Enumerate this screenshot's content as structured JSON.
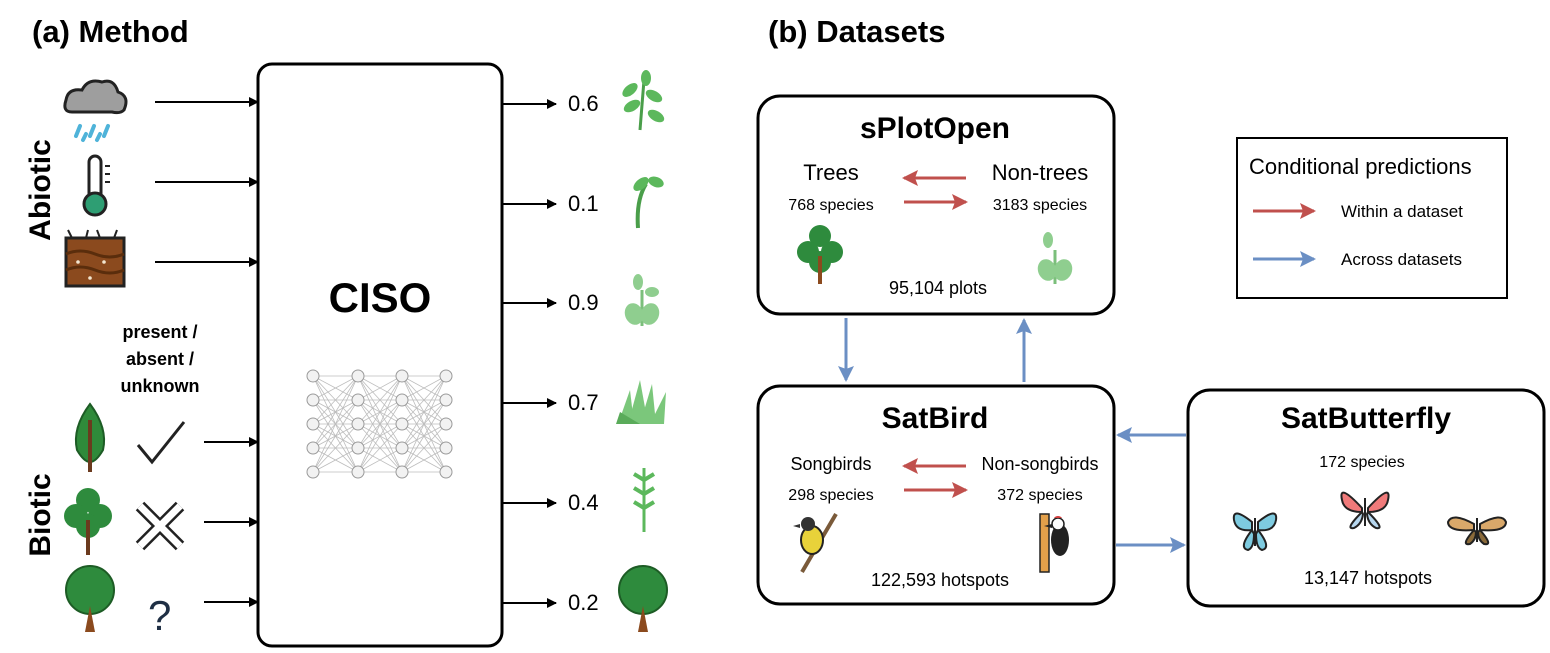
{
  "panel_a": {
    "title": "(a) Method",
    "abiotic_label": "Abiotic",
    "biotic_label": "Biotic",
    "model_label": "CISO",
    "status_label": [
      "present /",
      "absent /",
      "unknown"
    ],
    "input_icons": [
      "rain-cloud-icon",
      "thermometer-icon",
      "soil-icon",
      "leaf-tree-icon",
      "check-icon",
      "bushy-tree-icon",
      "cross-icon",
      "round-tree-icon",
      "question-icon"
    ],
    "outputs": [
      {
        "value": "0.6",
        "icon": "sprig-icon"
      },
      {
        "value": "0.1",
        "icon": "sprout-icon"
      },
      {
        "value": "0.9",
        "icon": "seedling-icon"
      },
      {
        "value": "0.7",
        "icon": "grass-icon"
      },
      {
        "value": "0.4",
        "icon": "fern-icon"
      },
      {
        "value": "0.2",
        "icon": "round-tree-icon"
      }
    ]
  },
  "panel_b": {
    "title": "(b) Datasets",
    "datasets": [
      {
        "name": "sPlotOpen",
        "group_a": "Trees",
        "group_a_count": "768 species",
        "group_b": "Non-trees",
        "group_b_count": "3183 species",
        "total": "95,104 plots"
      },
      {
        "name": "SatBird",
        "group_a": "Songbirds",
        "group_a_count": "298 species",
        "group_b": "Non-songbirds",
        "group_b_count": "372 species",
        "total": "122,593 hotspots"
      },
      {
        "name": "SatButterfly",
        "count": "172 species",
        "total": "13,147 hotspots"
      }
    ],
    "legend": {
      "title": "Conditional predictions",
      "within": "Within a dataset",
      "across": "Across datasets"
    },
    "colors": {
      "within": "#c0504d",
      "across": "#6b8fc4"
    }
  }
}
